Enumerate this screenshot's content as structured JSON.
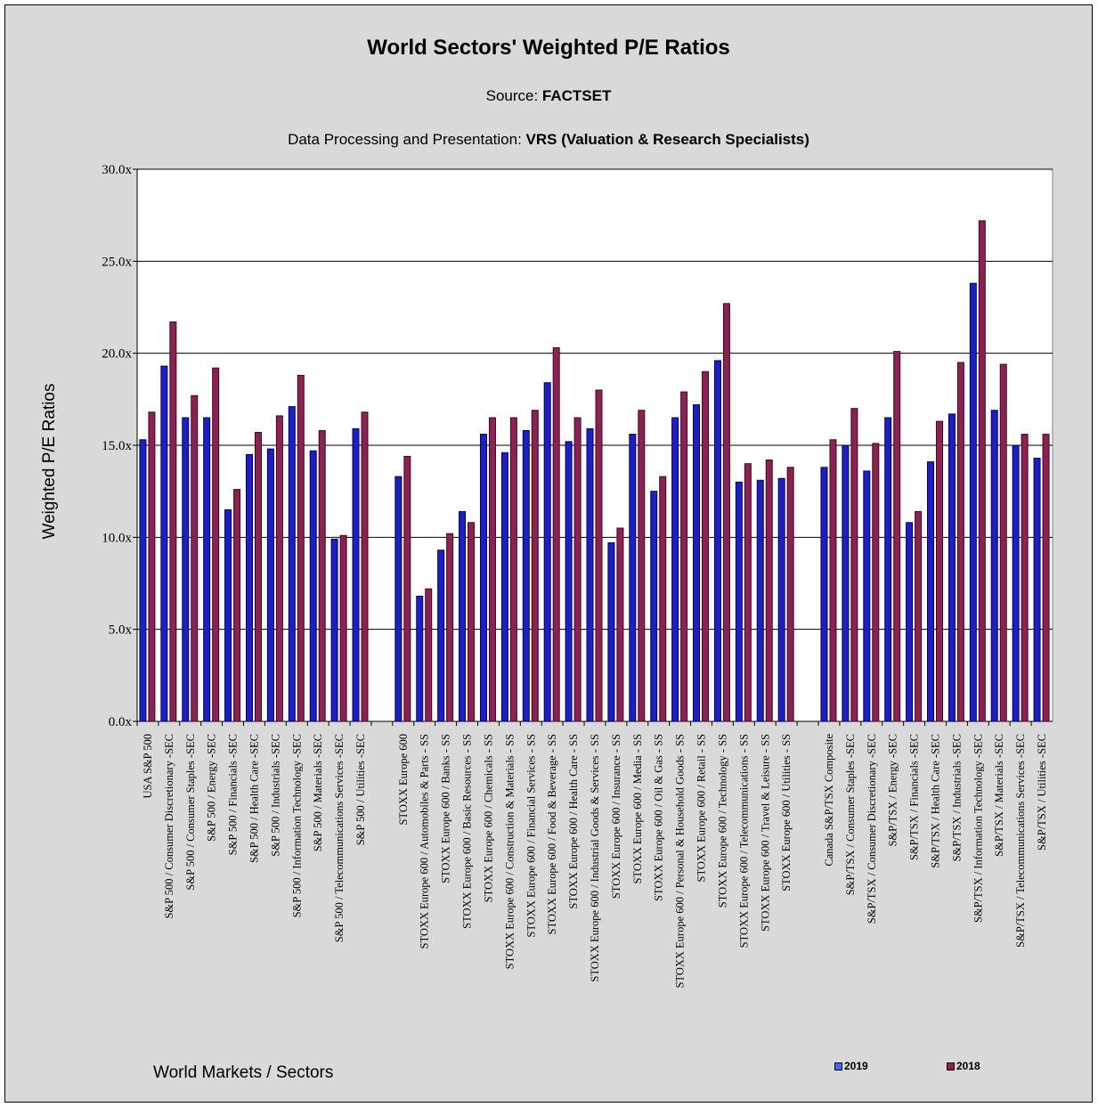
{
  "chart_data": {
    "type": "bar",
    "title": "World Sectors' Weighted P/E Ratios",
    "source_label": "Source: ",
    "source_value": "FACTSET",
    "processing_label": "Data Processing and Presentation: ",
    "processing_value": "VRS (Valuation & Research Specialists)",
    "xlabel": "World Markets / Sectors",
    "ylabel": "Weighted P/E Ratios",
    "ylim": [
      0,
      30
    ],
    "yticks": [
      "0.0x",
      "5.0x",
      "10.0x",
      "15.0x",
      "20.0x",
      "25.0x",
      "30.0x"
    ],
    "grid": true,
    "legend_position": "bottom-right",
    "categories": [
      "USA S&P 500",
      "S&P 500 / Consumer Discretionary -SEC",
      "S&P 500 / Consumer Staples -SEC",
      "S&P 500 / Energy -SEC",
      "S&P 500 / Financials -SEC",
      "S&P 500 / Health Care -SEC",
      "S&P 500 / Industrials -SEC",
      "S&P 500 / Information Technology -SEC",
      "S&P 500 / Materials -SEC",
      "S&P 500 / Telecommunications Services -SEC",
      "S&P 500 / Utilities -SEC",
      "",
      "STOXX Europe 600",
      "STOXX Europe 600 / Automobiles & Parts - SS",
      "STOXX Europe 600 / Banks - SS",
      "STOXX Europe 600 / Basic Resources - SS",
      "STOXX Europe 600 / Chemicals - SS",
      "STOXX Europe 600 / Construction & Materials - SS",
      "STOXX Europe 600 / Financial Services - SS",
      "STOXX Europe 600 / Food & Beverage - SS",
      "STOXX Europe 600 / Health Care - SS",
      "STOXX Europe 600 / Industrial Goods & Services - SS",
      "STOXX Europe 600 / Insurance - SS",
      "STOXX Europe 600 / Media - SS",
      "STOXX Europe 600 / Oil & Gas - SS",
      "STOXX Europe 600 / Personal & Household Goods - SS",
      "STOXX Europe 600 / Retail - SS",
      "STOXX Europe 600 / Technology - SS",
      "STOXX Europe 600 / Telecommunications - SS",
      "STOXX Europe 600 / Travel & Leisure - SS",
      "STOXX Europe 600 / Utilities - SS",
      "",
      "Canada S&P/TSX Composite",
      "S&P/TSX / Consumer Staples -SEC",
      "S&P/TSX / Consumer Discretionary -SEC",
      "S&P/TSX / Energy -SEC",
      "S&P/TSX / Financials -SEC",
      "S&P/TSX / Health Care -SEC",
      "S&P/TSX / Industrials -SEC",
      "S&P/TSX / Information Technology -SEC",
      "S&P/TSX / Materials -SEC",
      "S&P/TSX / Telecommunications Services -SEC",
      "S&P/TSX / Utilities -SEC"
    ],
    "series": [
      {
        "name": "2019",
        "color": "#1f1fbf",
        "values": [
          15.3,
          19.3,
          16.5,
          16.5,
          11.5,
          14.5,
          14.8,
          17.1,
          14.7,
          9.9,
          15.9,
          null,
          13.3,
          6.8,
          9.3,
          11.4,
          15.6,
          14.6,
          15.8,
          18.4,
          15.2,
          15.9,
          9.7,
          15.6,
          12.5,
          16.5,
          17.2,
          19.6,
          13.0,
          13.1,
          13.2,
          null,
          13.8,
          15.0,
          13.6,
          16.5,
          10.8,
          14.1,
          16.7,
          23.8,
          16.9,
          15.0,
          14.3
        ]
      },
      {
        "name": "2018",
        "color": "#8b2252",
        "values": [
          16.8,
          21.7,
          17.7,
          19.2,
          12.6,
          15.7,
          16.6,
          18.8,
          15.8,
          10.1,
          16.8,
          null,
          14.4,
          7.2,
          10.2,
          10.8,
          16.5,
          16.5,
          16.9,
          20.3,
          16.5,
          18.0,
          10.5,
          16.9,
          13.3,
          17.9,
          19.0,
          22.7,
          14.0,
          14.2,
          13.8,
          null,
          15.3,
          17.0,
          15.1,
          20.1,
          11.4,
          16.3,
          19.5,
          27.2,
          19.4,
          15.6,
          15.6
        ]
      }
    ]
  }
}
